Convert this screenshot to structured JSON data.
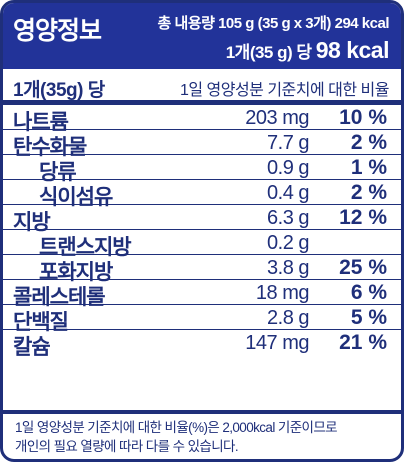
{
  "header": {
    "title": "영양정보",
    "total_line": "총 내용량 105 g (35 g x 3개) 294 kcal",
    "per_serving_prefix": "1개(35 g) 당",
    "per_serving_kcal": "98 kcal"
  },
  "subhead": {
    "left": "1개(35g) 당",
    "right": "1일 영양성분 기준치에 대한 비율"
  },
  "rows": [
    {
      "name": "나트륨",
      "amount": "203 mg",
      "percent": "10 %",
      "sub": false
    },
    {
      "name": "탄수화물",
      "amount": "7.7 g",
      "percent": "2 %",
      "sub": false
    },
    {
      "name": "당류",
      "amount": "0.9 g",
      "percent": "1 %",
      "sub": true
    },
    {
      "name": "식이섬유",
      "amount": "0.4 g",
      "percent": "2 %",
      "sub": true
    },
    {
      "name": "지방",
      "amount": "6.3 g",
      "percent": "12 %",
      "sub": false
    },
    {
      "name": "트랜스지방",
      "amount": "0.2 g",
      "percent": "",
      "sub": true
    },
    {
      "name": "포화지방",
      "amount": "3.8 g",
      "percent": "25 %",
      "sub": true
    },
    {
      "name": "콜레스테롤",
      "amount": "18 mg",
      "percent": "6 %",
      "sub": false
    },
    {
      "name": "단백질",
      "amount": "2.8 g",
      "percent": "5 %",
      "sub": false
    },
    {
      "name": "칼슘",
      "amount": "147 mg",
      "percent": "21 %",
      "sub": false
    }
  ],
  "footer": {
    "line1": "1일 영양성분 기준치에 대한 비율(%)은 2,000kcal 기준이므로",
    "line2": "개인의 필요 열량에 따라 다를 수 있습니다."
  }
}
